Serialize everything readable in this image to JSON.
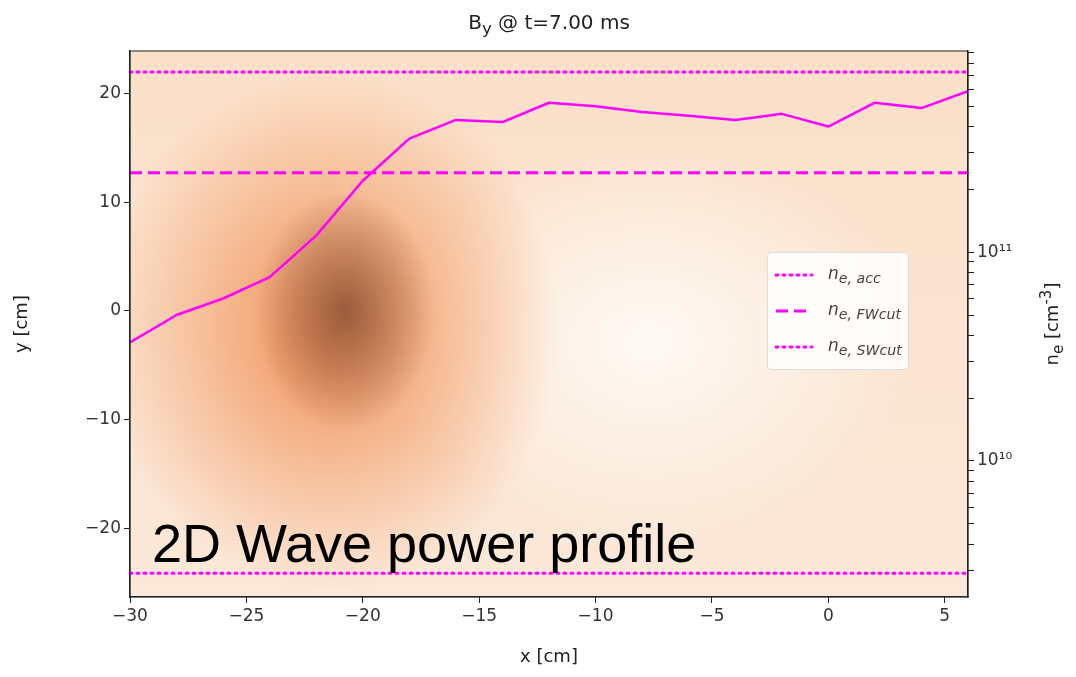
{
  "chart_data": {
    "type": "line",
    "title": "B$_{y}$ @ t=7.00 ms",
    "xlabel": "x [cm]",
    "ylabel": "y [cm]",
    "y2label": "n$_{e}$ [cm$^{-3}$]",
    "x": [
      -30,
      -28,
      -26,
      -24,
      -22,
      -20,
      -18,
      -16,
      -14,
      -12,
      -10,
      -8,
      -6,
      -4,
      -2,
      0,
      2,
      4,
      6
    ],
    "series": [
      {
        "color": "#ff00ff",
        "axis": "y2",
        "values": [
          37000000000.0,
          50000000000.0,
          60000000000.0,
          76000000000.0,
          120000000000.0,
          220000000000.0,
          350000000000.0,
          430000000000.0,
          420000000000.0,
          520000000000.0,
          500000000000.0,
          470000000000.0,
          450000000000.0,
          430000000000.0,
          460000000000.0,
          400000000000.0,
          520000000000.0,
          490000000000.0,
          590000000000.0
        ]
      }
    ],
    "xlim": [
      -30,
      6
    ],
    "xticks": [
      -30,
      -25,
      -20,
      -15,
      -10,
      -5,
      0,
      5
    ],
    "ylim": [
      -26.3,
      23.9
    ],
    "yticks": [
      -20,
      -10,
      0,
      10,
      20
    ],
    "y2lim": [
      2230000000.0,
      920000000000.0
    ],
    "y2ticks": [
      {
        "value": 3000000000.0,
        "label": null
      },
      {
        "value": 4000000000.0,
        "label": null
      },
      {
        "value": 5000000000.0,
        "label": null
      },
      {
        "value": 6000000000.0,
        "label": null
      },
      {
        "value": 7000000000.0,
        "label": null
      },
      {
        "value": 8000000000.0,
        "label": null
      },
      {
        "value": 9000000000.0,
        "label": null
      },
      {
        "value": 10000000000.0,
        "label": "10¹⁰"
      },
      {
        "value": 20000000000.0,
        "label": null
      },
      {
        "value": 30000000000.0,
        "label": null
      },
      {
        "value": 40000000000.0,
        "label": null
      },
      {
        "value": 50000000000.0,
        "label": null
      },
      {
        "value": 60000000000.0,
        "label": null
      },
      {
        "value": 70000000000.0,
        "label": null
      },
      {
        "value": 80000000000.0,
        "label": null
      },
      {
        "value": 90000000000.0,
        "label": null
      },
      {
        "value": 100000000000.0,
        "label": "10¹¹"
      },
      {
        "value": 200000000000.0,
        "label": null
      },
      {
        "value": 300000000000.0,
        "label": null
      },
      {
        "value": 400000000000.0,
        "label": null
      },
      {
        "value": 500000000000.0,
        "label": null
      },
      {
        "value": 600000000000.0,
        "label": null
      },
      {
        "value": 700000000000.0,
        "label": null
      },
      {
        "value": 800000000000.0,
        "label": null
      },
      {
        "value": 900000000000.0,
        "label": null
      }
    ],
    "log": "y2",
    "ref_lines": [
      {
        "axis": "y2",
        "value": 730000000000.0,
        "label": "n$_{e, acc}$",
        "color": "#ff00ff",
        "line_style": "dotted"
      },
      {
        "axis": "y2",
        "value": 240000000000.0,
        "label": "n$_{e, FWcut}$",
        "color": "#ff00ff",
        "line_style": "dashed"
      },
      {
        "axis": "y2",
        "value": 2900000000.0,
        "label": "n$_{e, SWcut}$",
        "color": "#ff00ff",
        "line_style": "dotted"
      }
    ],
    "legend": "right",
    "grid": false,
    "marker": "none",
    "line_style": "solid",
    "annotations": [
      "2D Wave power profile"
    ]
  }
}
